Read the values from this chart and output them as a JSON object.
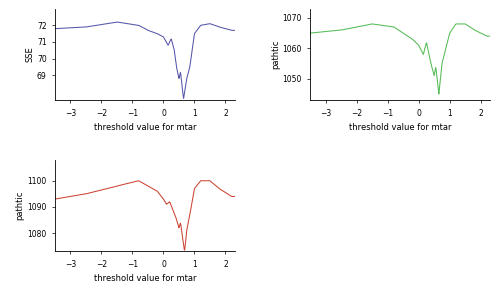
{
  "xlabel": "threshold value for mtar",
  "xlim": [
    -3.5,
    2.3
  ],
  "xticks": [
    -3,
    -2,
    -1,
    0,
    1,
    2
  ],
  "plots": [
    {
      "ylabel": "SSE",
      "ylim": [
        67.5,
        73.0
      ],
      "yticks": [
        69,
        70,
        71,
        72
      ],
      "color": "#5555aa",
      "profile": "sse"
    },
    {
      "ylabel": "pathtic",
      "ylim": [
        1043,
        1073
      ],
      "yticks": [
        1050,
        1060,
        1070
      ],
      "color": "#55bb55",
      "profile": "pathtic_green"
    },
    {
      "ylabel": "pathtic",
      "ylim": [
        1073,
        1108
      ],
      "yticks": [
        1080,
        1090,
        1100
      ],
      "color": "#cc4433",
      "profile": "pathtic_red"
    }
  ]
}
